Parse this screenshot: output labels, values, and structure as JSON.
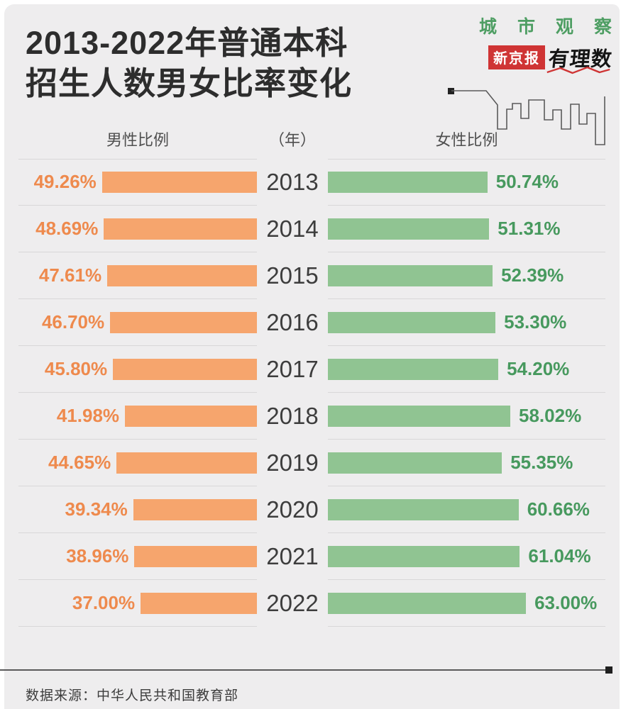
{
  "header": {
    "title_line1": "2013-2022年普通本科",
    "title_line2": "招生人数男女比率变化",
    "logo": {
      "brand_top": "城市观察",
      "brand_badge": "新京报",
      "brand_script": "有理数"
    }
  },
  "chart_header": {
    "male_label": "男性比例",
    "year_label": "（年）",
    "female_label": "女性比例"
  },
  "chart_data": {
    "type": "bar",
    "orientation": "horizontal-diverging",
    "title": "2013-2022年普通本科招生人数男女比率变化",
    "series_names": [
      "男性比例",
      "女性比例"
    ],
    "value_suffix": "%",
    "xlim": [
      0,
      63
    ],
    "rows": [
      {
        "year": "2013",
        "male": 49.26,
        "female": 50.74,
        "male_label": "49.26%",
        "female_label": "50.74%"
      },
      {
        "year": "2014",
        "male": 48.69,
        "female": 51.31,
        "male_label": "48.69%",
        "female_label": "51.31%"
      },
      {
        "year": "2015",
        "male": 47.61,
        "female": 52.39,
        "male_label": "47.61%",
        "female_label": "52.39%"
      },
      {
        "year": "2016",
        "male": 46.7,
        "female": 53.3,
        "male_label": "46.70%",
        "female_label": "53.30%"
      },
      {
        "year": "2017",
        "male": 45.8,
        "female": 54.2,
        "male_label": "45.80%",
        "female_label": "54.20%"
      },
      {
        "year": "2018",
        "male": 41.98,
        "female": 58.02,
        "male_label": "41.98%",
        "female_label": "58.02%"
      },
      {
        "year": "2019",
        "male": 44.65,
        "female": 55.35,
        "male_label": "44.65%",
        "female_label": "55.35%"
      },
      {
        "year": "2020",
        "male": 39.34,
        "female": 60.66,
        "male_label": "39.34%",
        "female_label": "60.66%"
      },
      {
        "year": "2021",
        "male": 38.96,
        "female": 61.04,
        "male_label": "38.96%",
        "female_label": "61.04%"
      },
      {
        "year": "2022",
        "male": 37.0,
        "female": 63.0,
        "male_label": "37.00%",
        "female_label": "63.00%"
      }
    ]
  },
  "colors": {
    "male_bar": "#f6a56d",
    "male_text": "#ee8a4d",
    "female_bar": "#90c492",
    "female_text": "#47995e",
    "background": "#eeedee",
    "badge_red": "#cf3434",
    "brand_green": "#4e9e63"
  },
  "footer": {
    "source": "数据来源：中华人民共和国教育部"
  }
}
